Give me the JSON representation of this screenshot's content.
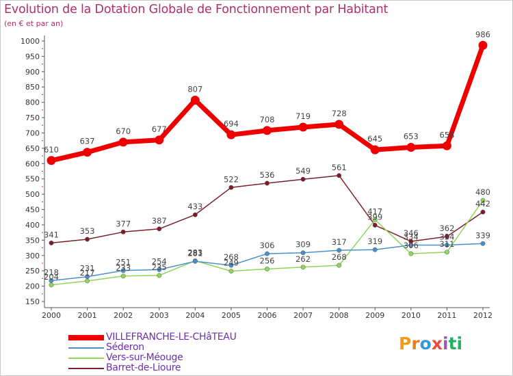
{
  "title": "Evolution de la Dotation Globale de Fonctionnement par Habitant",
  "subtitle": "(en € et par an)",
  "logo": {
    "letters": [
      "P",
      "r",
      "o",
      "x",
      "i",
      "t",
      "i"
    ],
    "colors": [
      "#f39c12",
      "#e67e22",
      "#3498db",
      "#e74c3c",
      "#9b59b6",
      "#27ae60",
      "#27ae60"
    ]
  },
  "chart_data": {
    "type": "line",
    "x": [
      "2000",
      "2001",
      "2002",
      "2003",
      "2004",
      "2005",
      "2006",
      "2007",
      "2008",
      "2009",
      "2010",
      "2011",
      "2012"
    ],
    "ylim": [
      150,
      1000
    ],
    "yticks": [
      "150",
      "200",
      "250",
      "300",
      "350",
      "400",
      "450",
      "500",
      "550",
      "600",
      "650",
      "700",
      "750",
      "800",
      "850",
      "900",
      "950",
      "1000"
    ],
    "grid": false,
    "legend_position": "bottom-left",
    "series": [
      {
        "name": "VILLEFRANCHE-LE-CHâTEAU",
        "color": "#ee0000",
        "values": [
          610,
          637,
          670,
          677,
          807,
          694,
          708,
          719,
          728,
          645,
          653,
          658,
          986
        ],
        "labels": [
          "610",
          "637",
          "670",
          "677",
          "807",
          "694",
          "708",
          "719",
          "728",
          "645",
          "653",
          "658",
          "986"
        ]
      },
      {
        "name": "Séderon",
        "color": "#4a90c8",
        "values": [
          218,
          231,
          251,
          254,
          281,
          268,
          306,
          309,
          317,
          319,
          334,
          334,
          339
        ],
        "labels": [
          "218",
          "231",
          "251",
          "254",
          "281",
          "268",
          "306",
          "309",
          "317",
          "319",
          "334",
          "334",
          "339"
        ]
      },
      {
        "name": "Vers-sur-Méouge",
        "color": "#8fd65a",
        "values": [
          204,
          217,
          233,
          235,
          283,
          249,
          256,
          262,
          268,
          417,
          306,
          311,
          480
        ],
        "labels": [
          "204",
          "217",
          "233",
          "235",
          "283",
          "249",
          "256",
          "262",
          "268",
          "417",
          "306",
          "311",
          "480"
        ]
      },
      {
        "name": "Barret-de-Lioure",
        "color": "#7b1e2a",
        "values": [
          341,
          353,
          377,
          387,
          433,
          522,
          536,
          549,
          561,
          399,
          346,
          362,
          442
        ],
        "labels": [
          "341",
          "353",
          "377",
          "387",
          "433",
          "522",
          "536",
          "549",
          "561",
          "399",
          "346",
          "362",
          "442"
        ]
      }
    ]
  }
}
